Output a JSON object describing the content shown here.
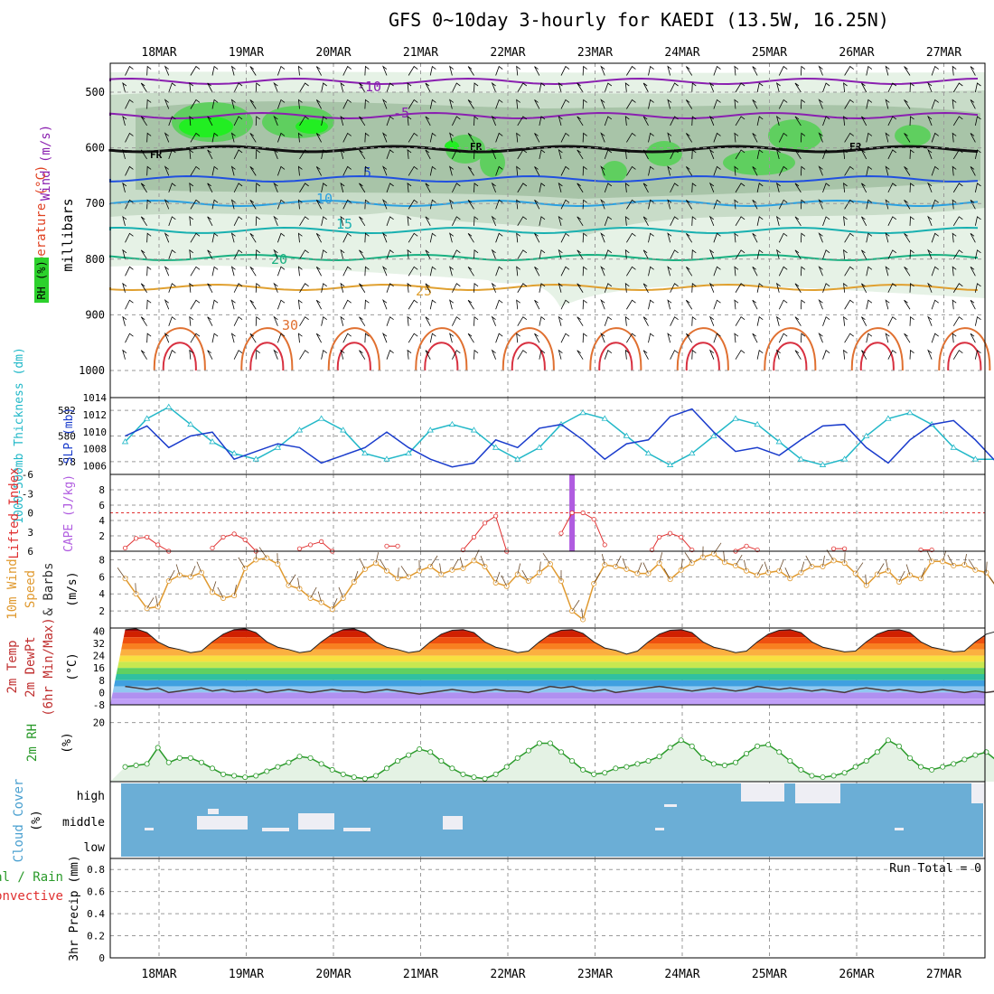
{
  "title": "GFS 0~10day 3-hourly for KAEDI (13.5W, 16.25N)",
  "colors": {
    "frame": "#000000",
    "grid": "#9a9a9a",
    "rh_light": "#e6f2e6",
    "rh_mid": "#c8dcc8",
    "rh_dark": "#a8c4a8",
    "rh_green": "#5fcf5f",
    "rh_bright": "#22ee22",
    "slp": "#1a3ccc",
    "thickness": "#22b8c8",
    "lifted": "#e03030",
    "cape": "#b05ce0",
    "wind": "#e09a30",
    "barb_brown": "#6b4a2a",
    "rh2m": "#2a9a2a",
    "rh2m_fill": "#e4f2e4",
    "cloud": "#6baed6",
    "cloud_white": "#eeeef4",
    "dew": "#4a3a3a"
  },
  "date_labels": [
    "18MAR",
    "19MAR",
    "20MAR",
    "21MAR",
    "22MAR",
    "23MAR",
    "24MAR",
    "25MAR",
    "26MAR",
    "27MAR"
  ],
  "panels": {
    "upper": {
      "ylabel_wind": "Wind (m/s)",
      "ylabel_temp": "Temperature (°C)",
      "ylabel_rh": "RH (%)",
      "ylabel_p": "millibars",
      "ticks": [
        "500",
        "600",
        "700",
        "800",
        "900",
        "1000"
      ],
      "fr_label": "FR"
    },
    "slp": {
      "ylabel_thick": "1000-500mb Thickness (dm)",
      "ylabel_slp": "SLP (mb)",
      "left_ticks": [
        "582",
        "580",
        "578"
      ],
      "right_ticks": [
        "1014",
        "1012",
        "1010",
        "1008",
        "1006"
      ]
    },
    "li": {
      "ylabel_li": "Lifted Index",
      "ylabel_cape": "CAPE (J/kg)",
      "left_ticks": [
        "-6",
        "-3",
        "0",
        "3",
        "6"
      ],
      "right_ticks": [
        "8",
        "6",
        "4",
        "2"
      ]
    },
    "wind": {
      "ylabel_a": "10m Wind",
      "ylabel_b": "Speed",
      "ylabel_c": "& Barbs",
      "ylabel_unit": "(m/s)",
      "ticks": [
        "8",
        "6",
        "4",
        "2"
      ]
    },
    "temp": {
      "ylabel_a": "2m Temp",
      "ylabel_b": "2m DewPt",
      "ylabel_c": "(6hr Min/Max)",
      "ylabel_unit": "(°C)",
      "ticks": [
        "40",
        "32",
        "24",
        "16",
        "8",
        "0",
        "-8"
      ]
    },
    "rh2m": {
      "ylabel": "2m RH",
      "ylabel_unit": "(%)",
      "ticks": [
        "20"
      ]
    },
    "cloud": {
      "ylabel": "Cloud Cover",
      "ylabel_unit": "(%)",
      "levels": [
        "high",
        "middle",
        "low"
      ]
    },
    "precip": {
      "ylabel_a": "Total / Rain",
      "ylabel_b": "Convective",
      "ylabel_c": "3hr Precip (mm)",
      "ticks": [
        "0.8",
        "0.6",
        "0.4",
        "0.2",
        "0"
      ],
      "run_total": "Run Total = 0"
    }
  },
  "chart_data": [
    {
      "type": "line",
      "panel": "sea_level_pressure",
      "title": "",
      "ylabel": "SLP (mb)",
      "x_start": "17MAR 12Z",
      "x_step_hours": 6,
      "series": [
        {
          "name": "SLP",
          "values": [
            1009.5,
            1010.8,
            1008,
            1009.5,
            1010,
            1006.5,
            1007.5,
            1008.5,
            1008,
            1006,
            1007,
            1008,
            1010,
            1008,
            1006.5,
            1005.5,
            1006,
            1009,
            1008,
            1010.5,
            1011,
            1009,
            1006.5,
            1008.5,
            1009,
            1012,
            1013,
            1010,
            1007.5,
            1008,
            1007,
            1009,
            1010.8,
            1011,
            1008,
            1006,
            1009,
            1011,
            1011.5,
            1009,
            1006,
            1005.5,
            1008,
            1010,
            1010.5,
            1007.5,
            1006.5,
            1009,
            1009,
            1010,
            1009,
            1007,
            1008,
            1009.5,
            1011.5,
            1011,
            1007,
            1009,
            1009.5,
            1008.5,
            1010,
            1008.5,
            1007,
            1009,
            1009.5,
            1010.5,
            1011,
            1008.5,
            1007,
            1008.5,
            1009.5,
            1008,
            1010,
            1009,
            1008,
            1007,
            1009,
            1010,
            1008,
            1006.5,
            1007.5
          ]
        }
      ],
      "ylim": [
        1005,
        1014
      ]
    },
    {
      "type": "line",
      "panel": "thickness",
      "ylabel": "1000-500mb Thickness (dm)",
      "x_start": "17MAR 12Z",
      "x_step_hours": 6,
      "series": [
        {
          "name": "Thickness",
          "values": [
            579.5,
            581.5,
            582.5,
            581,
            579.5,
            578.5,
            578,
            579,
            580.5,
            581.5,
            580.5,
            578.5,
            578,
            578.5,
            580.5,
            581,
            580.5,
            579,
            578,
            579,
            581,
            582,
            581.5,
            580,
            578.5,
            577.5,
            578.5,
            580,
            581.5,
            581,
            579.5,
            578,
            577.5,
            578,
            580,
            581.5,
            582,
            581,
            579,
            578,
            578,
            579.5,
            581.5,
            581.5,
            580,
            578.5,
            578,
            578.5,
            580.5,
            581.5,
            581.5,
            580,
            578,
            578,
            579,
            580.5,
            581.5,
            580.5,
            578.5,
            577.5,
            578,
            580,
            581.5,
            581.5,
            580,
            578.5,
            578,
            579,
            580.5,
            581,
            580.5,
            578.5,
            578,
            578.5,
            580,
            581,
            580.5,
            579,
            577.5,
            578
          ]
        }
      ],
      "ylim": [
        577,
        583
      ]
    },
    {
      "type": "line",
      "panel": "lifted_index",
      "ylabel": "Lifted Index",
      "x_start": "17MAR 12Z",
      "x_step_hours": 3,
      "segments": [
        {
          "x_hours": [
            0,
            3,
            6,
            9,
            12
          ],
          "values": [
            5.5,
            4,
            3.8,
            5,
            6
          ]
        },
        {
          "x_hours": [
            24,
            27,
            30,
            33,
            36
          ],
          "values": [
            5.5,
            3.8,
            3.3,
            4.2,
            6
          ]
        },
        {
          "x_hours": [
            48,
            51,
            54,
            57
          ],
          "values": [
            5.6,
            5,
            4.5,
            6
          ]
        },
        {
          "x_hours": [
            72,
            75
          ],
          "values": [
            5.2,
            5.2
          ]
        },
        {
          "x_hours": [
            93,
            96,
            99,
            102,
            105
          ],
          "values": [
            5.8,
            3.8,
            1.6,
            0.5,
            6
          ]
        },
        {
          "x_hours": [
            120,
            123,
            126,
            129,
            132
          ],
          "values": [
            3.2,
            0,
            0,
            1,
            5
          ]
        },
        {
          "x_hours": [
            145,
            147,
            150,
            153,
            156
          ],
          "values": [
            5.8,
            3.8,
            3.2,
            3.8,
            5.8
          ]
        },
        {
          "x_hours": [
            168,
            171,
            174
          ],
          "values": [
            6,
            5.2,
            5.8
          ]
        },
        {
          "x_hours": [
            195,
            198
          ],
          "values": [
            5.6,
            5.6
          ]
        },
        {
          "x_hours": [
            219,
            222
          ],
          "values": [
            5.8,
            5.8
          ]
        }
      ],
      "ylim": [
        6,
        -6
      ]
    },
    {
      "type": "bar",
      "panel": "cape",
      "ylabel": "CAPE (J/kg)",
      "x_start": "17MAR 12Z",
      "bars": [
        {
          "x_hours": 123,
          "value": 10
        }
      ],
      "ylim": [
        0,
        10
      ]
    },
    {
      "type": "line",
      "panel": "wind_speed_10m",
      "ylabel": "(m/s)",
      "x_start": "17MAR 12Z",
      "x_step_hours": 3,
      "series": [
        {
          "name": "10m Wind Speed",
          "values": [
            5.8,
            4,
            2.3,
            2.5,
            5.5,
            6.2,
            6,
            6.5,
            4.2,
            3.5,
            3.8,
            7,
            8,
            8.2,
            7.5,
            5,
            4.6,
            3.5,
            3,
            2.2,
            3.5,
            5.4,
            6.9,
            7.6,
            6.7,
            5.8,
            6,
            6.7,
            7.2,
            6.3,
            6.8,
            7,
            7.9,
            7.2,
            5.3,
            4.9,
            6.3,
            5.5,
            6.5,
            7.5,
            5.5,
            2,
            1,
            5.2,
            7.4,
            7.2,
            6.9,
            6.4,
            6.4,
            7.6,
            5.7,
            6.8,
            7.6,
            8.3,
            8.7,
            7.7,
            7.3,
            6.7,
            6.2,
            6.5,
            6.7,
            5.8,
            6.5,
            7.2,
            7.2,
            7.9,
            7.6,
            6.4,
            5,
            6.3,
            6.7,
            5.4,
            6.2,
            5.8,
            7.8,
            7.8,
            7.3,
            7.4,
            6.8,
            6.5,
            4.7,
            4,
            5.3,
            7,
            7.4,
            7.3,
            6,
            6,
            6.4,
            6.1,
            6.3,
            5.4,
            5,
            5.4,
            6.4,
            7,
            7.4,
            6.4,
            5,
            4.8
          ]
        }
      ],
      "ylim": [
        0,
        9
      ]
    },
    {
      "type": "area",
      "panel": "temperature_2m",
      "ylabel": "(°C)",
      "x_start": "17MAR 12Z",
      "x_step_hours": 3,
      "series": [
        {
          "name": "2m Temp",
          "values": [
            41,
            41.5,
            39,
            33,
            29.5,
            28,
            26,
            27,
            33,
            38,
            41,
            41.5,
            39,
            33,
            29.5,
            28,
            26,
            27,
            33,
            38,
            41,
            41.5,
            39,
            33,
            29.5,
            28,
            26,
            27,
            33,
            38,
            40.5,
            41,
            39,
            33,
            29.5,
            28,
            26,
            27,
            33,
            38,
            40.5,
            41,
            38.5,
            33,
            29,
            27.5,
            25,
            27,
            33,
            38,
            40.5,
            41,
            39,
            33,
            29.5,
            28,
            26,
            27,
            33,
            38,
            40.5,
            41,
            39,
            33,
            29.5,
            28,
            26.5,
            27,
            33,
            38,
            40.5,
            41,
            39,
            33,
            29.5,
            28,
            26.5,
            27,
            33,
            38,
            40,
            41,
            39,
            33,
            29.5,
            28,
            26.5,
            27,
            33,
            38,
            40,
            41,
            39,
            33,
            29.5,
            28,
            26.5,
            27,
            28,
            31
          ]
        },
        {
          "name": "2m DewPt",
          "values": [
            4,
            3,
            2,
            3,
            0,
            1,
            2,
            3,
            1,
            2,
            0.5,
            1,
            2,
            0,
            1,
            2,
            1,
            0,
            1,
            2,
            1,
            1,
            0,
            1,
            2,
            1,
            0,
            -1,
            0,
            1,
            2,
            1,
            0,
            1,
            2,
            1,
            1,
            0,
            2,
            4,
            3,
            4,
            2,
            1,
            2,
            0,
            1,
            2,
            3,
            4,
            3,
            2,
            1,
            2,
            3,
            2,
            1,
            2,
            4,
            3,
            2,
            3,
            2,
            1,
            2,
            1,
            0,
            2,
            3,
            2,
            1,
            2,
            1,
            0,
            1,
            2,
            1,
            0,
            1,
            0,
            1,
            2,
            1,
            2,
            3,
            2,
            3,
            2,
            1,
            0,
            1,
            0,
            -1,
            0,
            1,
            2,
            1,
            0,
            -2,
            -4
          ]
        }
      ],
      "ylim": [
        -8,
        42
      ]
    },
    {
      "type": "line",
      "panel": "rh_2m",
      "ylabel": "(%)",
      "x_start": "17MAR 12Z",
      "x_step_hours": 3,
      "series": [
        {
          "name": "2m RH",
          "values": [
            5,
            5.5,
            6,
            11.5,
            6.5,
            8,
            8,
            6.5,
            4.5,
            2.5,
            2,
            1.5,
            2,
            3.5,
            5,
            6.5,
            8.5,
            8,
            6,
            4,
            2.5,
            1.5,
            1,
            2,
            4.5,
            7,
            9,
            11,
            10,
            7,
            4.5,
            2.5,
            1.5,
            1,
            2.5,
            5,
            8,
            10.5,
            13,
            13,
            10,
            7,
            4,
            2.5,
            3,
            4.5,
            5,
            6,
            7,
            8.5,
            11.5,
            14,
            12,
            8,
            6,
            5.5,
            6.5,
            9.5,
            12,
            12.5,
            10,
            7,
            4,
            2,
            1.5,
            2,
            3,
            5,
            7,
            10,
            14,
            12,
            8,
            5,
            4,
            5,
            6,
            7.5,
            9,
            10,
            7,
            5,
            3,
            2,
            2,
            3,
            4,
            6,
            9,
            10.5,
            11,
            9,
            6,
            4,
            3,
            3.5,
            6,
            6,
            5.5,
            5.5
          ]
        }
      ],
      "ylim": [
        0,
        26
      ]
    },
    {
      "type": "table",
      "panel": "precip_3hr",
      "ylabel": "3hr Precip (mm)",
      "ylim": [
        0,
        0.9
      ],
      "run_total": 0
    }
  ]
}
